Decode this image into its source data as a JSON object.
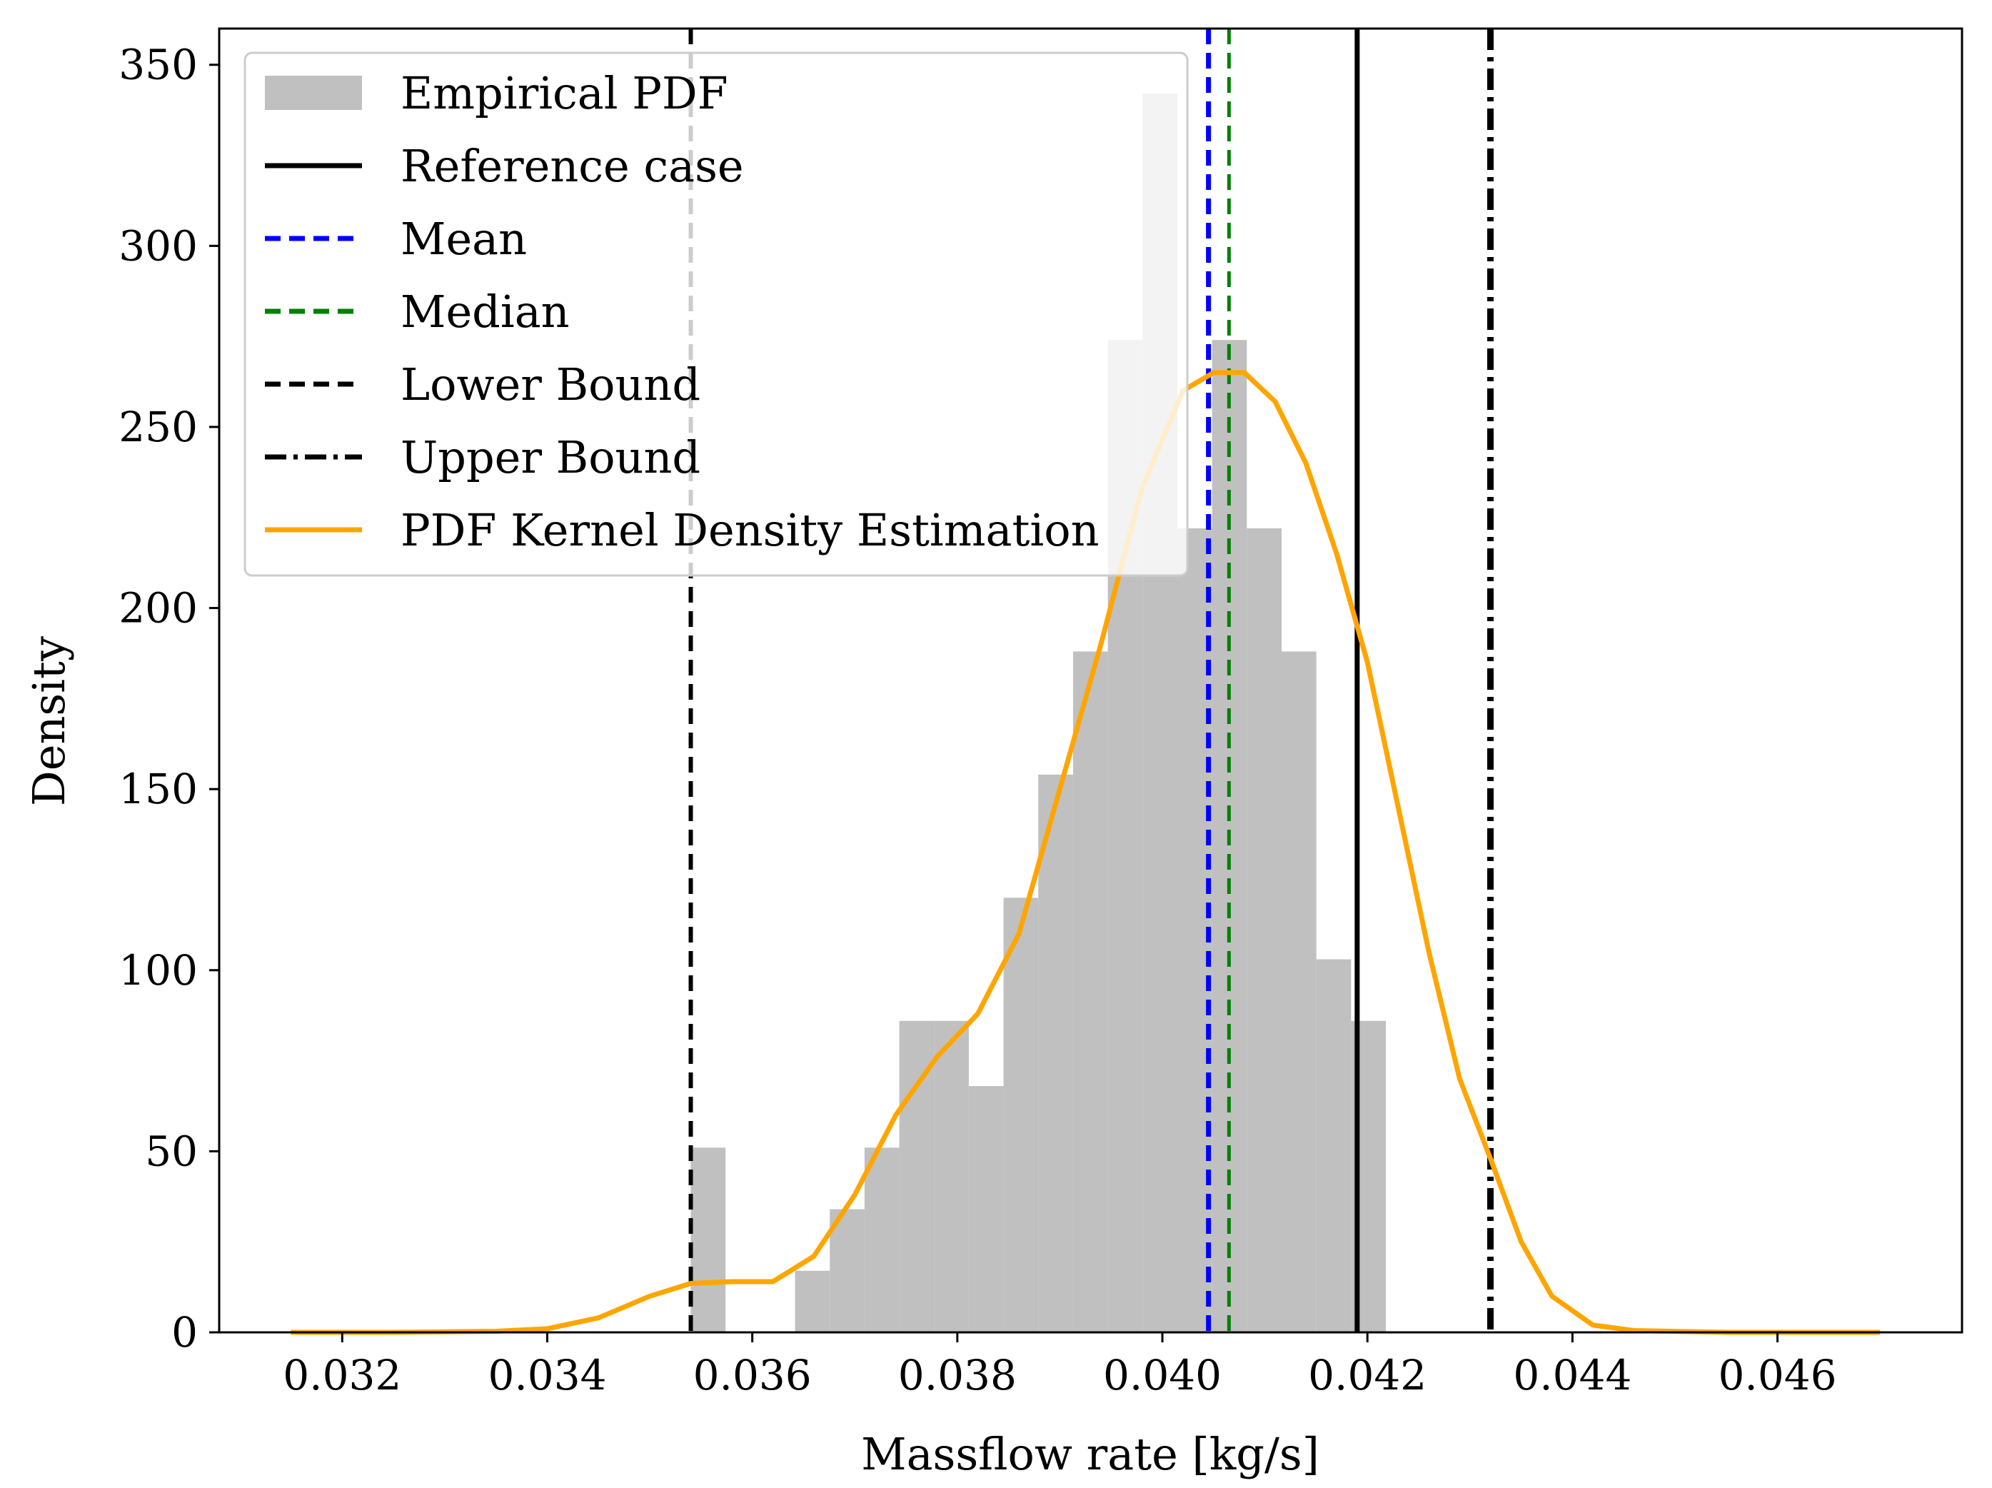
{
  "chart_data": {
    "type": "histogram",
    "xlabel": "Massflow rate [kg/s]",
    "ylabel": "Density",
    "xlim": [
      0.0308,
      0.0478
    ],
    "ylim": [
      0,
      360
    ],
    "xticks": [
      0.032,
      0.034,
      0.036,
      0.038,
      0.04,
      0.042,
      0.044,
      0.046
    ],
    "xtick_labels": [
      "0.032",
      "0.034",
      "0.036",
      "0.038",
      "0.040",
      "0.042",
      "0.044",
      "0.046"
    ],
    "yticks": [
      0,
      50,
      100,
      150,
      200,
      250,
      300,
      350
    ],
    "ytick_labels": [
      "0",
      "50",
      "100",
      "150",
      "200",
      "250",
      "300",
      "350"
    ],
    "histogram": {
      "name": "Empirical PDF",
      "color": "#c0c0c0",
      "bin_start": 0.0354,
      "bin_width": 0.000339,
      "values": [
        51,
        0,
        0,
        17,
        34,
        51,
        86,
        86,
        68,
        120,
        154,
        188,
        274,
        342,
        222,
        274,
        222,
        188,
        103,
        86
      ]
    },
    "vlines": [
      {
        "name": "Reference case",
        "x": 0.0419,
        "color": "#000000",
        "style": "solid"
      },
      {
        "name": "Mean",
        "x": 0.04045,
        "color": "#0000ff",
        "style": "dashed"
      },
      {
        "name": "Median",
        "x": 0.04065,
        "color": "#008000",
        "style": "dashed"
      },
      {
        "name": "Lower Bound",
        "x": 0.0354,
        "color": "#000000",
        "style": "dashed"
      },
      {
        "name": "Upper Bound",
        "x": 0.0432,
        "color": "#000000",
        "style": "dashdot"
      }
    ],
    "kde": {
      "name": "PDF Kernel Density Estimation",
      "color": "#ffa500",
      "x": [
        0.0315,
        0.0325,
        0.0335,
        0.034,
        0.0345,
        0.035,
        0.0354,
        0.0358,
        0.0362,
        0.0366,
        0.037,
        0.0374,
        0.0378,
        0.0382,
        0.0386,
        0.039,
        0.0394,
        0.0398,
        0.0402,
        0.0405,
        0.0408,
        0.0411,
        0.0414,
        0.0417,
        0.042,
        0.0423,
        0.0426,
        0.0429,
        0.0432,
        0.0435,
        0.0438,
        0.0442,
        0.0446,
        0.0455,
        0.047
      ],
      "y": [
        0,
        0,
        0.3,
        1,
        4,
        10,
        13.5,
        14,
        14,
        21,
        38,
        60,
        76,
        88,
        110,
        150,
        190,
        233,
        260,
        265,
        265,
        257,
        240,
        215,
        185,
        145,
        105,
        70,
        48,
        25,
        10,
        2,
        0.5,
        0,
        0
      ]
    },
    "legend": {
      "position": "top-left",
      "entries": [
        {
          "label": "Empirical PDF",
          "kind": "patch",
          "color": "#c0c0c0"
        },
        {
          "label": "Reference case",
          "kind": "line",
          "color": "#000000",
          "style": "solid"
        },
        {
          "label": "Mean",
          "kind": "line",
          "color": "#0000ff",
          "style": "dashed"
        },
        {
          "label": "Median",
          "kind": "line",
          "color": "#008000",
          "style": "dashed"
        },
        {
          "label": "Lower Bound",
          "kind": "line",
          "color": "#000000",
          "style": "dashed"
        },
        {
          "label": "Upper Bound",
          "kind": "line",
          "color": "#000000",
          "style": "dashdot"
        },
        {
          "label": "PDF Kernel Density Estimation",
          "kind": "line",
          "color": "#ffa500",
          "style": "solid"
        }
      ]
    }
  }
}
